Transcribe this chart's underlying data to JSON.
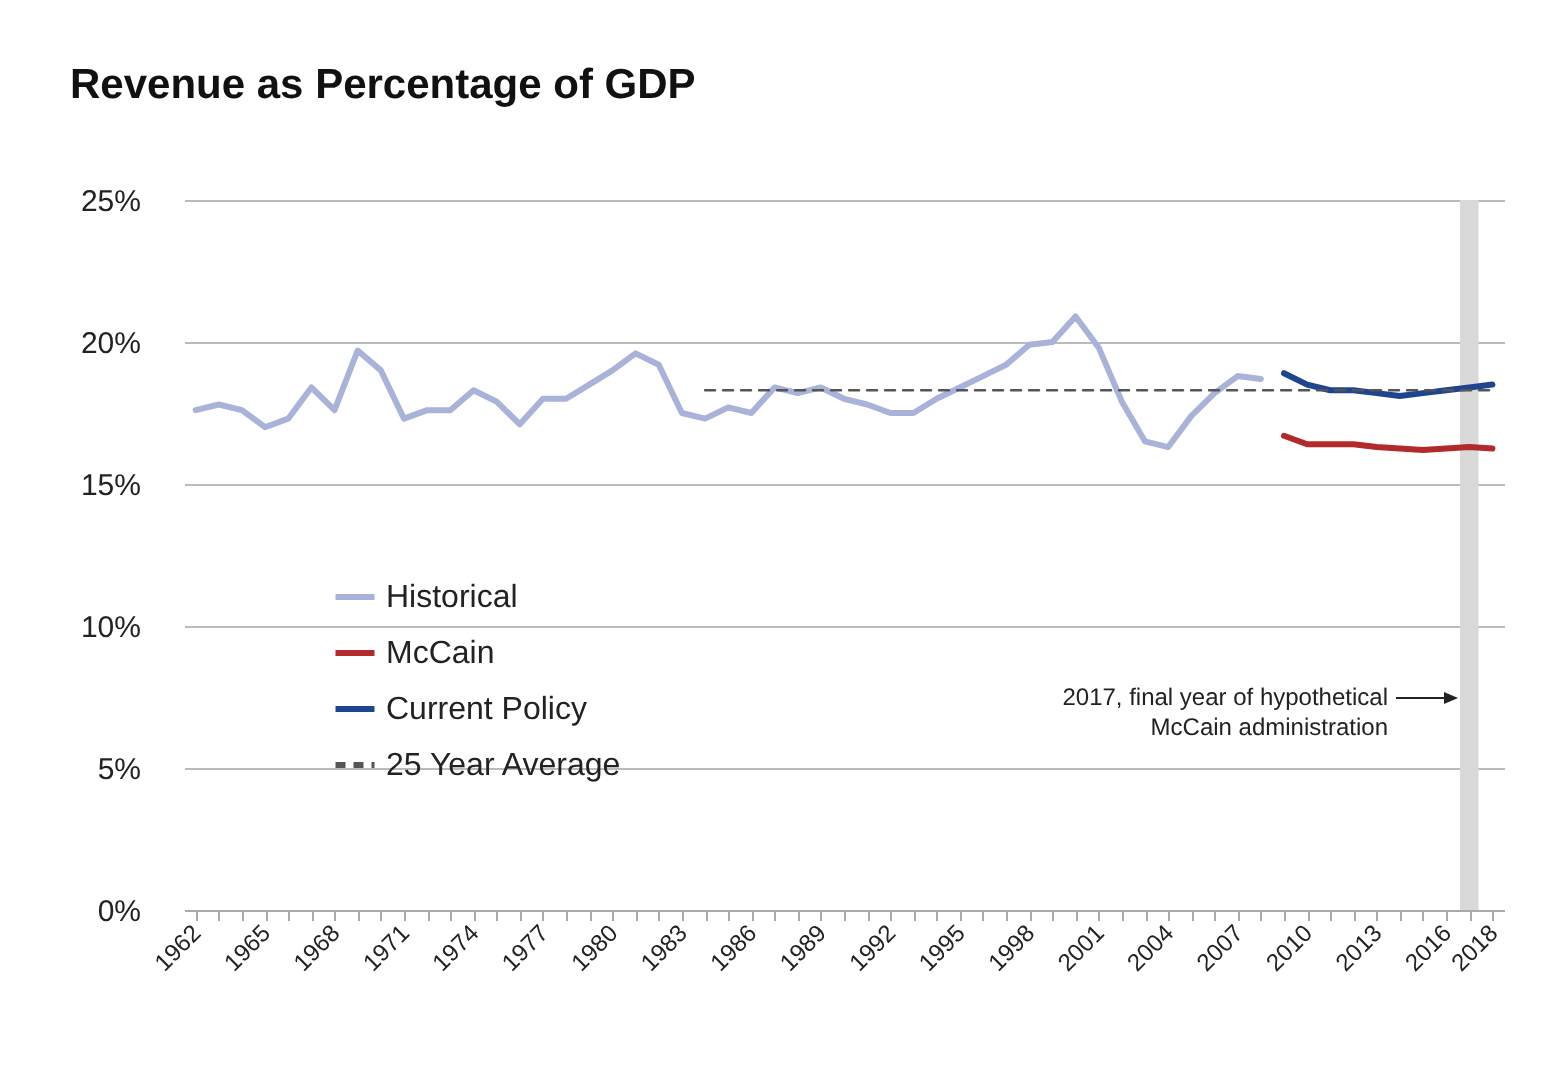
{
  "chart_data": {
    "type": "line",
    "title": "Revenue as Percentage of GDP",
    "x": [
      1962,
      1963,
      1964,
      1965,
      1966,
      1967,
      1968,
      1969,
      1970,
      1971,
      1972,
      1973,
      1974,
      1975,
      1976,
      1977,
      1978,
      1979,
      1980,
      1981,
      1982,
      1983,
      1984,
      1985,
      1986,
      1987,
      1988,
      1989,
      1990,
      1991,
      1992,
      1993,
      1994,
      1995,
      1996,
      1997,
      1998,
      1999,
      2000,
      2001,
      2002,
      2003,
      2004,
      2005,
      2006,
      2007,
      2008
    ],
    "series": [
      {
        "name": "Historical",
        "color": "#a9b3d9",
        "values": [
          17.6,
          17.8,
          17.6,
          17.0,
          17.3,
          18.4,
          17.6,
          19.7,
          19.0,
          17.3,
          17.6,
          17.6,
          18.3,
          17.9,
          17.1,
          18.0,
          18.0,
          18.5,
          19.0,
          19.6,
          19.2,
          17.5,
          17.3,
          17.7,
          17.5,
          18.4,
          18.2,
          18.4,
          18.0,
          17.8,
          17.5,
          17.5,
          18.0,
          18.4,
          18.8,
          19.2,
          19.9,
          20.0,
          20.9,
          19.8,
          17.9,
          16.5,
          16.3,
          17.4,
          18.2,
          18.8,
          18.7
        ]
      },
      {
        "name": "McCain",
        "color": "#b22a2a",
        "x": [
          2009,
          2010,
          2011,
          2012,
          2013,
          2014,
          2015,
          2016,
          2017,
          2018
        ],
        "values": [
          16.7,
          16.4,
          16.4,
          16.4,
          16.3,
          16.25,
          16.2,
          16.25,
          16.3,
          16.25
        ]
      },
      {
        "name": "Current Policy",
        "color": "#1f4590",
        "x": [
          2009,
          2010,
          2011,
          2012,
          2013,
          2014,
          2015,
          2016,
          2017,
          2018
        ],
        "values": [
          18.9,
          18.5,
          18.3,
          18.3,
          18.2,
          18.1,
          18.2,
          18.3,
          18.4,
          18.5
        ]
      },
      {
        "name": "25 Year Average",
        "color": "#555555",
        "line_style": "dashed",
        "x": [
          1984,
          2018
        ],
        "values": [
          18.3,
          18.3
        ]
      }
    ],
    "xlim": [
      1961.5,
      2018.5
    ],
    "xticks": [
      1962,
      {
        "value": 1963,
        "label": null
      },
      {
        "value": 1964,
        "label": null
      },
      1965,
      {
        "value": 1966,
        "label": null
      },
      {
        "value": 1967,
        "label": null
      },
      1968,
      {
        "value": 1969,
        "label": null
      },
      {
        "value": 1970,
        "label": null
      },
      1971,
      {
        "value": 1972,
        "label": null
      },
      {
        "value": 1973,
        "label": null
      },
      1974,
      {
        "value": 1975,
        "label": null
      },
      {
        "value": 1976,
        "label": null
      },
      1977,
      {
        "value": 1978,
        "label": null
      },
      {
        "value": 1979,
        "label": null
      },
      1980,
      {
        "value": 1981,
        "label": null
      },
      {
        "value": 1982,
        "label": null
      },
      1983,
      {
        "value": 1984,
        "label": null
      },
      {
        "value": 1985,
        "label": null
      },
      1986,
      {
        "value": 1987,
        "label": null
      },
      {
        "value": 1988,
        "label": null
      },
      1989,
      {
        "value": 1990,
        "label": null
      },
      {
        "value": 1991,
        "label": null
      },
      1992,
      {
        "value": 1993,
        "label": null
      },
      {
        "value": 1994,
        "label": null
      },
      1995,
      {
        "value": 1996,
        "label": null
      },
      {
        "value": 1997,
        "label": null
      },
      1998,
      {
        "value": 1999,
        "label": null
      },
      {
        "value": 2000,
        "label": null
      },
      2001,
      {
        "value": 2002,
        "label": null
      },
      {
        "value": 2003,
        "label": null
      },
      2004,
      {
        "value": 2005,
        "label": null
      },
      {
        "value": 2006,
        "label": null
      },
      2007,
      {
        "value": 2008,
        "label": null
      },
      {
        "value": 2009,
        "label": null
      },
      2010,
      {
        "value": 2011,
        "label": null
      },
      {
        "value": 2012,
        "label": null
      },
      2013,
      {
        "value": 2014,
        "label": null
      },
      {
        "value": 2015,
        "label": null
      },
      2016,
      {
        "value": 2017,
        "label": null
      },
      2018
    ],
    "ylim": [
      0,
      25
    ],
    "yticks": [
      {
        "value": 0,
        "label": "0%"
      },
      {
        "value": 5,
        "label": "5%"
      },
      {
        "value": 10,
        "label": "10%"
      },
      {
        "value": 15,
        "label": "15%"
      },
      {
        "value": 20,
        "label": "20%"
      },
      {
        "value": 25,
        "label": "25%"
      }
    ],
    "grid": "y",
    "legend": "bottom left",
    "line_style": "solid",
    "bands": [
      {
        "axis": "x",
        "from": 2016.6,
        "to": 2017.4,
        "color": "#d9d9d9"
      }
    ],
    "annotations": [
      {
        "text": "2017, final year of hypothetical\nMcCain administration",
        "x": 2016.6,
        "y": 7.5
      }
    ]
  }
}
